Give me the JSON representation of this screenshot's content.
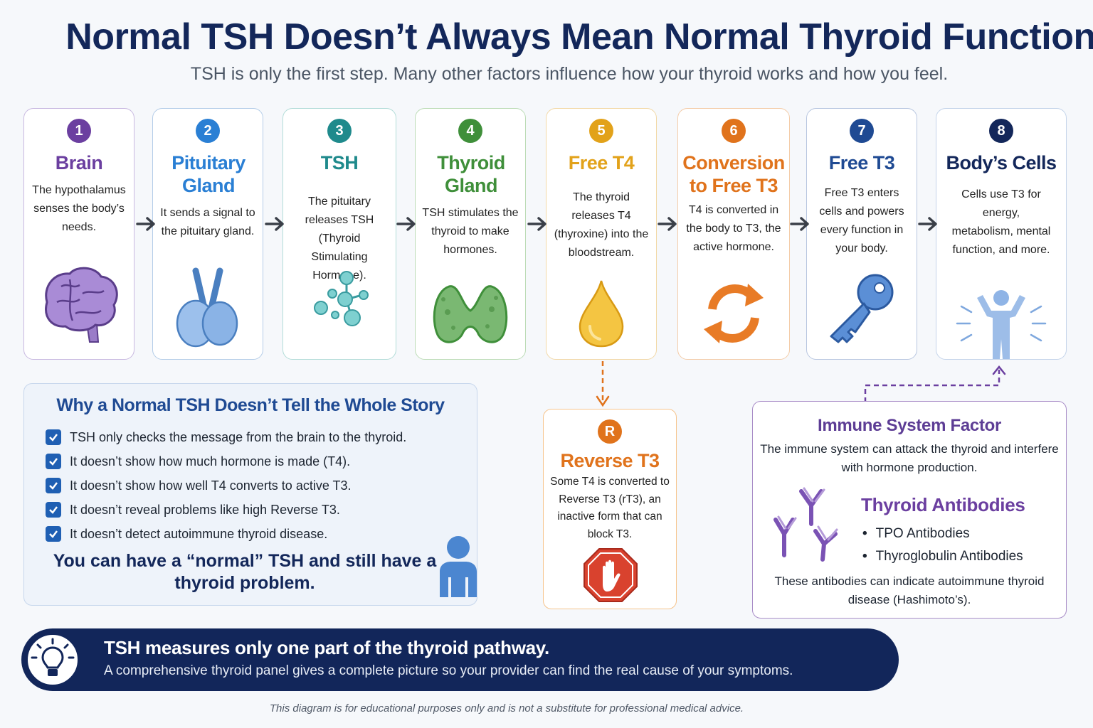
{
  "header": {
    "title": "Normal TSH Doesn’t Always Mean Normal Thyroid Function",
    "subtitle": "TSH is only the first step. Many other factors influence how your thyroid works and how you feel."
  },
  "steps": [
    {
      "number": "1",
      "title": "Brain",
      "description": "The hypothalamus senses the body’s needs.",
      "icon": "brain-icon",
      "color": "#6b3fa0"
    },
    {
      "number": "2",
      "title": "Pituitary Gland",
      "description": "It sends a signal to the pituitary gland.",
      "icon": "pituitary-gland-icon",
      "color": "#2a7fd4"
    },
    {
      "number": "3",
      "title": "TSH",
      "description": "The pituitary releases TSH (Thyroid Stimulating Hormone).",
      "icon": "hormone-molecules-icon",
      "color": "#1f8a8c"
    },
    {
      "number": "4",
      "title": "Thyroid Gland",
      "description": "TSH stimulates the thyroid to make hormones.",
      "icon": "thyroid-gland-icon",
      "color": "#3f8f3a"
    },
    {
      "number": "5",
      "title": "Free T4",
      "description": "The thyroid releases T4 (thyroxine) into the bloodstream.",
      "icon": "droplet-icon",
      "color": "#e2a21a"
    },
    {
      "number": "6",
      "title": "Conversion to Free T3",
      "description": "T4 is converted in the body to T3, the active hormone.",
      "icon": "conversion-cycle-icon",
      "color": "#e0731c"
    },
    {
      "number": "7",
      "title": "Free T3",
      "description": "Free T3 enters cells and powers every function in your body.",
      "icon": "key-icon",
      "color": "#1f4a93"
    },
    {
      "number": "8",
      "title": "Body’s Cells",
      "description": "Cells use T3 for energy, metabolism, mental function, and more.",
      "icon": "energized-person-icon",
      "color": "#13275a"
    }
  ],
  "why": {
    "title": "Why a Normal TSH Doesn’t Tell the Whole Story",
    "items": [
      "TSH only checks the message from the brain to the thyroid.",
      "It doesn’t show how much hormone is made (T4).",
      "It doesn’t show how well T4 converts to active T3.",
      "It doesn’t reveal problems like high Reverse T3.",
      "It doesn’t detect autoimmune thyroid disease."
    ],
    "note": "You can have a “normal” TSH and still have a thyroid problem."
  },
  "reverse_t3": {
    "badge": "R",
    "title": "Reverse T3",
    "description": "Some T4 is converted to Reverse T3 (rT3), an inactive form that can block T3.",
    "icon": "stop-hand-icon"
  },
  "immune": {
    "title": "Immune System Factor",
    "description": "The immune system can attack the thyroid and interfere with hormone production.",
    "antibodies_title": "Thyroid Antibodies",
    "antibodies": [
      "TPO Antibodies",
      "Thyroglobulin Antibodies"
    ],
    "note": "These antibodies can indicate autoimmune thyroid disease (Hashimoto’s)."
  },
  "banner": {
    "main": "TSH measures only one part of the thyroid pathway.",
    "sub": "A comprehensive thyroid panel gives a complete picture so your provider can find the real cause of your symptoms.",
    "icon": "lightbulb-icon"
  },
  "disclaimer": "This diagram is for educational purposes only and is not a substitute for professional medical advice."
}
